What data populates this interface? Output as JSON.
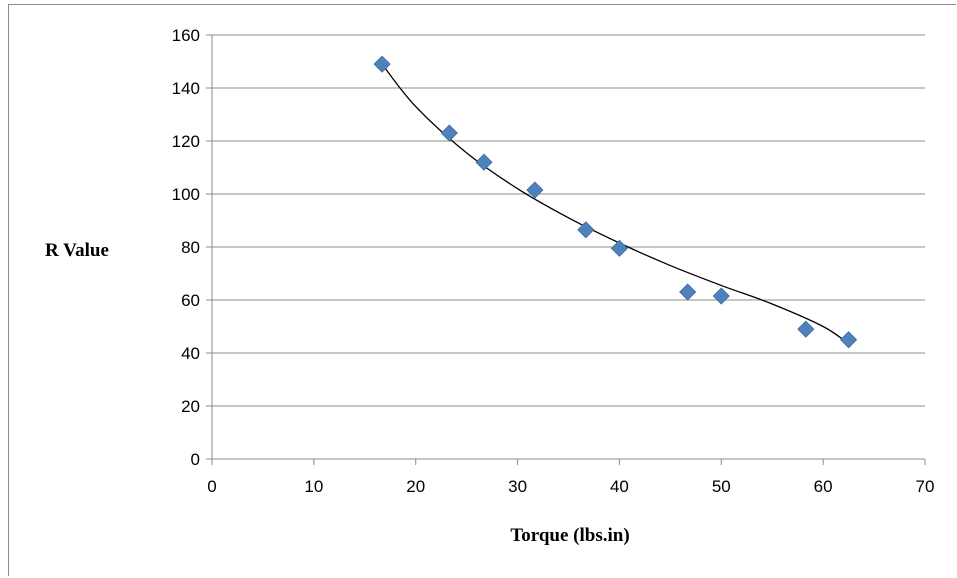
{
  "chart_data": {
    "type": "scatter",
    "title": "",
    "xlabel": "Torque (lbs.in)",
    "ylabel": "R Value",
    "xlim": [
      0,
      70
    ],
    "ylim": [
      0,
      160
    ],
    "xticks": [
      0,
      10,
      20,
      30,
      40,
      50,
      60,
      70
    ],
    "yticks": [
      0,
      20,
      40,
      60,
      80,
      100,
      120,
      140,
      160
    ],
    "grid": "horizontal",
    "legend": "none",
    "marker": "diamond",
    "marker_color": "#4F81BD",
    "trendline_color": "#000000",
    "series": [
      {
        "x": [
          16.7,
          23.3,
          26.7,
          31.7,
          36.7,
          40.0,
          46.7,
          50.0,
          58.3,
          62.5
        ],
        "y": [
          149,
          123,
          112,
          101.5,
          86.5,
          79.5,
          63,
          61.5,
          49,
          45
        ]
      }
    ],
    "trendline": {
      "type": "power",
      "x": [
        16.7,
        20,
        25,
        30,
        35,
        40,
        45,
        50,
        55,
        60,
        62.5
      ],
      "y": [
        149,
        133,
        115.5,
        102,
        91,
        81.5,
        73,
        65.5,
        58.5,
        50,
        43.5
      ]
    }
  }
}
